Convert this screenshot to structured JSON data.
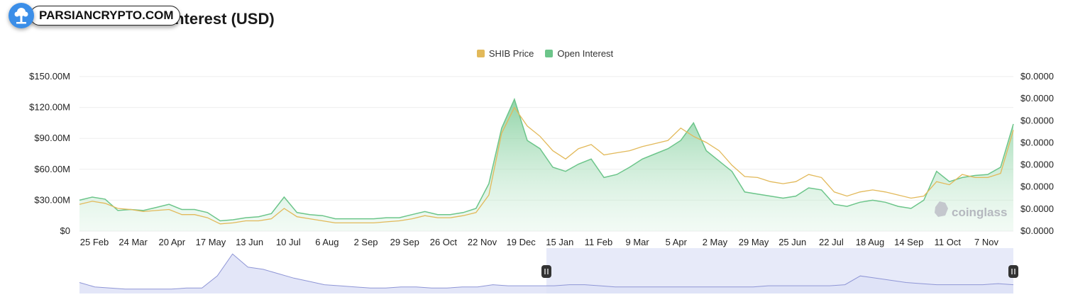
{
  "header": {
    "title": "Interest (USD)",
    "watermark_text": "PARSIANCRYPTO.COM",
    "watermark_icon": "tree-logo-icon"
  },
  "brand": {
    "name": "coinglass",
    "icon": "coinglass-logo-icon"
  },
  "colors": {
    "price": "#e2b95a",
    "open_interest": "#6cc58a",
    "open_interest_fill": "#cdeed8",
    "navigator_line": "#8f96d6",
    "navigator_fill": "#e3e6f8",
    "navigator_selection": "#dde1f7"
  },
  "chart_data": {
    "type": "area",
    "title": "",
    "legend_position": "top-center",
    "grid": true,
    "x_ticks": [
      "25 Feb",
      "24 Mar",
      "20 Apr",
      "17 May",
      "13 Jun",
      "10 Jul",
      "6 Aug",
      "2 Sep",
      "29 Sep",
      "26 Oct",
      "22 Nov",
      "19 Dec",
      "15 Jan",
      "11 Feb",
      "9 Mar",
      "5 Apr",
      "2 May",
      "29 May",
      "25 Jun",
      "22 Jul",
      "18 Aug",
      "14 Sep",
      "11 Oct",
      "7 Nov"
    ],
    "y_left": {
      "ticks": [
        "$150.00M",
        "$120.00M",
        "$90.00M",
        "$60.00M",
        "$30.00M",
        "$0"
      ],
      "values": [
        150,
        120,
        90,
        60,
        30,
        0
      ],
      "unit": "M USD",
      "range": [
        0,
        150
      ]
    },
    "y_right": {
      "ticks": [
        "$0.0000",
        "$0.0000",
        "$0.0000",
        "$0.0000",
        "$0.0000",
        "$0.0000",
        "$0.0000",
        "$0.0000"
      ]
    },
    "series": [
      {
        "name": "Open Interest",
        "axis": "left",
        "style": "area",
        "values": [
          30,
          33,
          31,
          20,
          21,
          20,
          23,
          26,
          21,
          21,
          18,
          10,
          11,
          13,
          14,
          17,
          33,
          18,
          16,
          15,
          12,
          12,
          12,
          12,
          13,
          13,
          16,
          19,
          16,
          16,
          18,
          22,
          46,
          100,
          128,
          88,
          80,
          62,
          58,
          65,
          70,
          52,
          55,
          62,
          70,
          75,
          80,
          88,
          105,
          78,
          68,
          58,
          38,
          36,
          34,
          32,
          34,
          42,
          40,
          26,
          24,
          28,
          30,
          28,
          24,
          22,
          30,
          58,
          48,
          52,
          54,
          55,
          62,
          104
        ]
      },
      {
        "name": "SHIB Price",
        "axis": "right",
        "style": "line",
        "values": [
          26,
          29,
          27,
          22,
          21,
          19,
          20,
          21,
          16,
          16,
          13,
          7,
          8,
          10,
          10,
          12,
          22,
          14,
          12,
          10,
          8,
          8,
          8,
          8,
          9,
          10,
          12,
          15,
          13,
          13,
          15,
          18,
          35,
          95,
          120,
          102,
          92,
          78,
          70,
          80,
          84,
          74,
          76,
          78,
          82,
          85,
          88,
          100,
          92,
          86,
          78,
          64,
          53,
          52,
          48,
          46,
          48,
          55,
          52,
          38,
          34,
          38,
          40,
          38,
          35,
          32,
          34,
          48,
          45,
          55,
          52,
          52,
          56,
          98
        ]
      }
    ],
    "navigator": {
      "values": [
        10,
        6,
        5,
        4,
        4,
        4,
        4,
        5,
        5,
        16,
        36,
        24,
        22,
        18,
        14,
        11,
        8,
        7,
        6,
        5,
        5,
        6,
        6,
        5,
        5,
        6,
        6,
        8,
        7,
        7,
        7,
        7,
        8,
        8,
        7,
        6,
        6,
        6,
        6,
        6,
        6,
        6,
        6,
        6,
        6,
        7,
        7,
        7,
        7,
        7,
        8,
        16,
        14,
        12,
        10,
        9,
        8,
        8,
        8,
        8,
        9,
        8
      ],
      "selection": [
        0.5,
        1.0
      ]
    }
  }
}
